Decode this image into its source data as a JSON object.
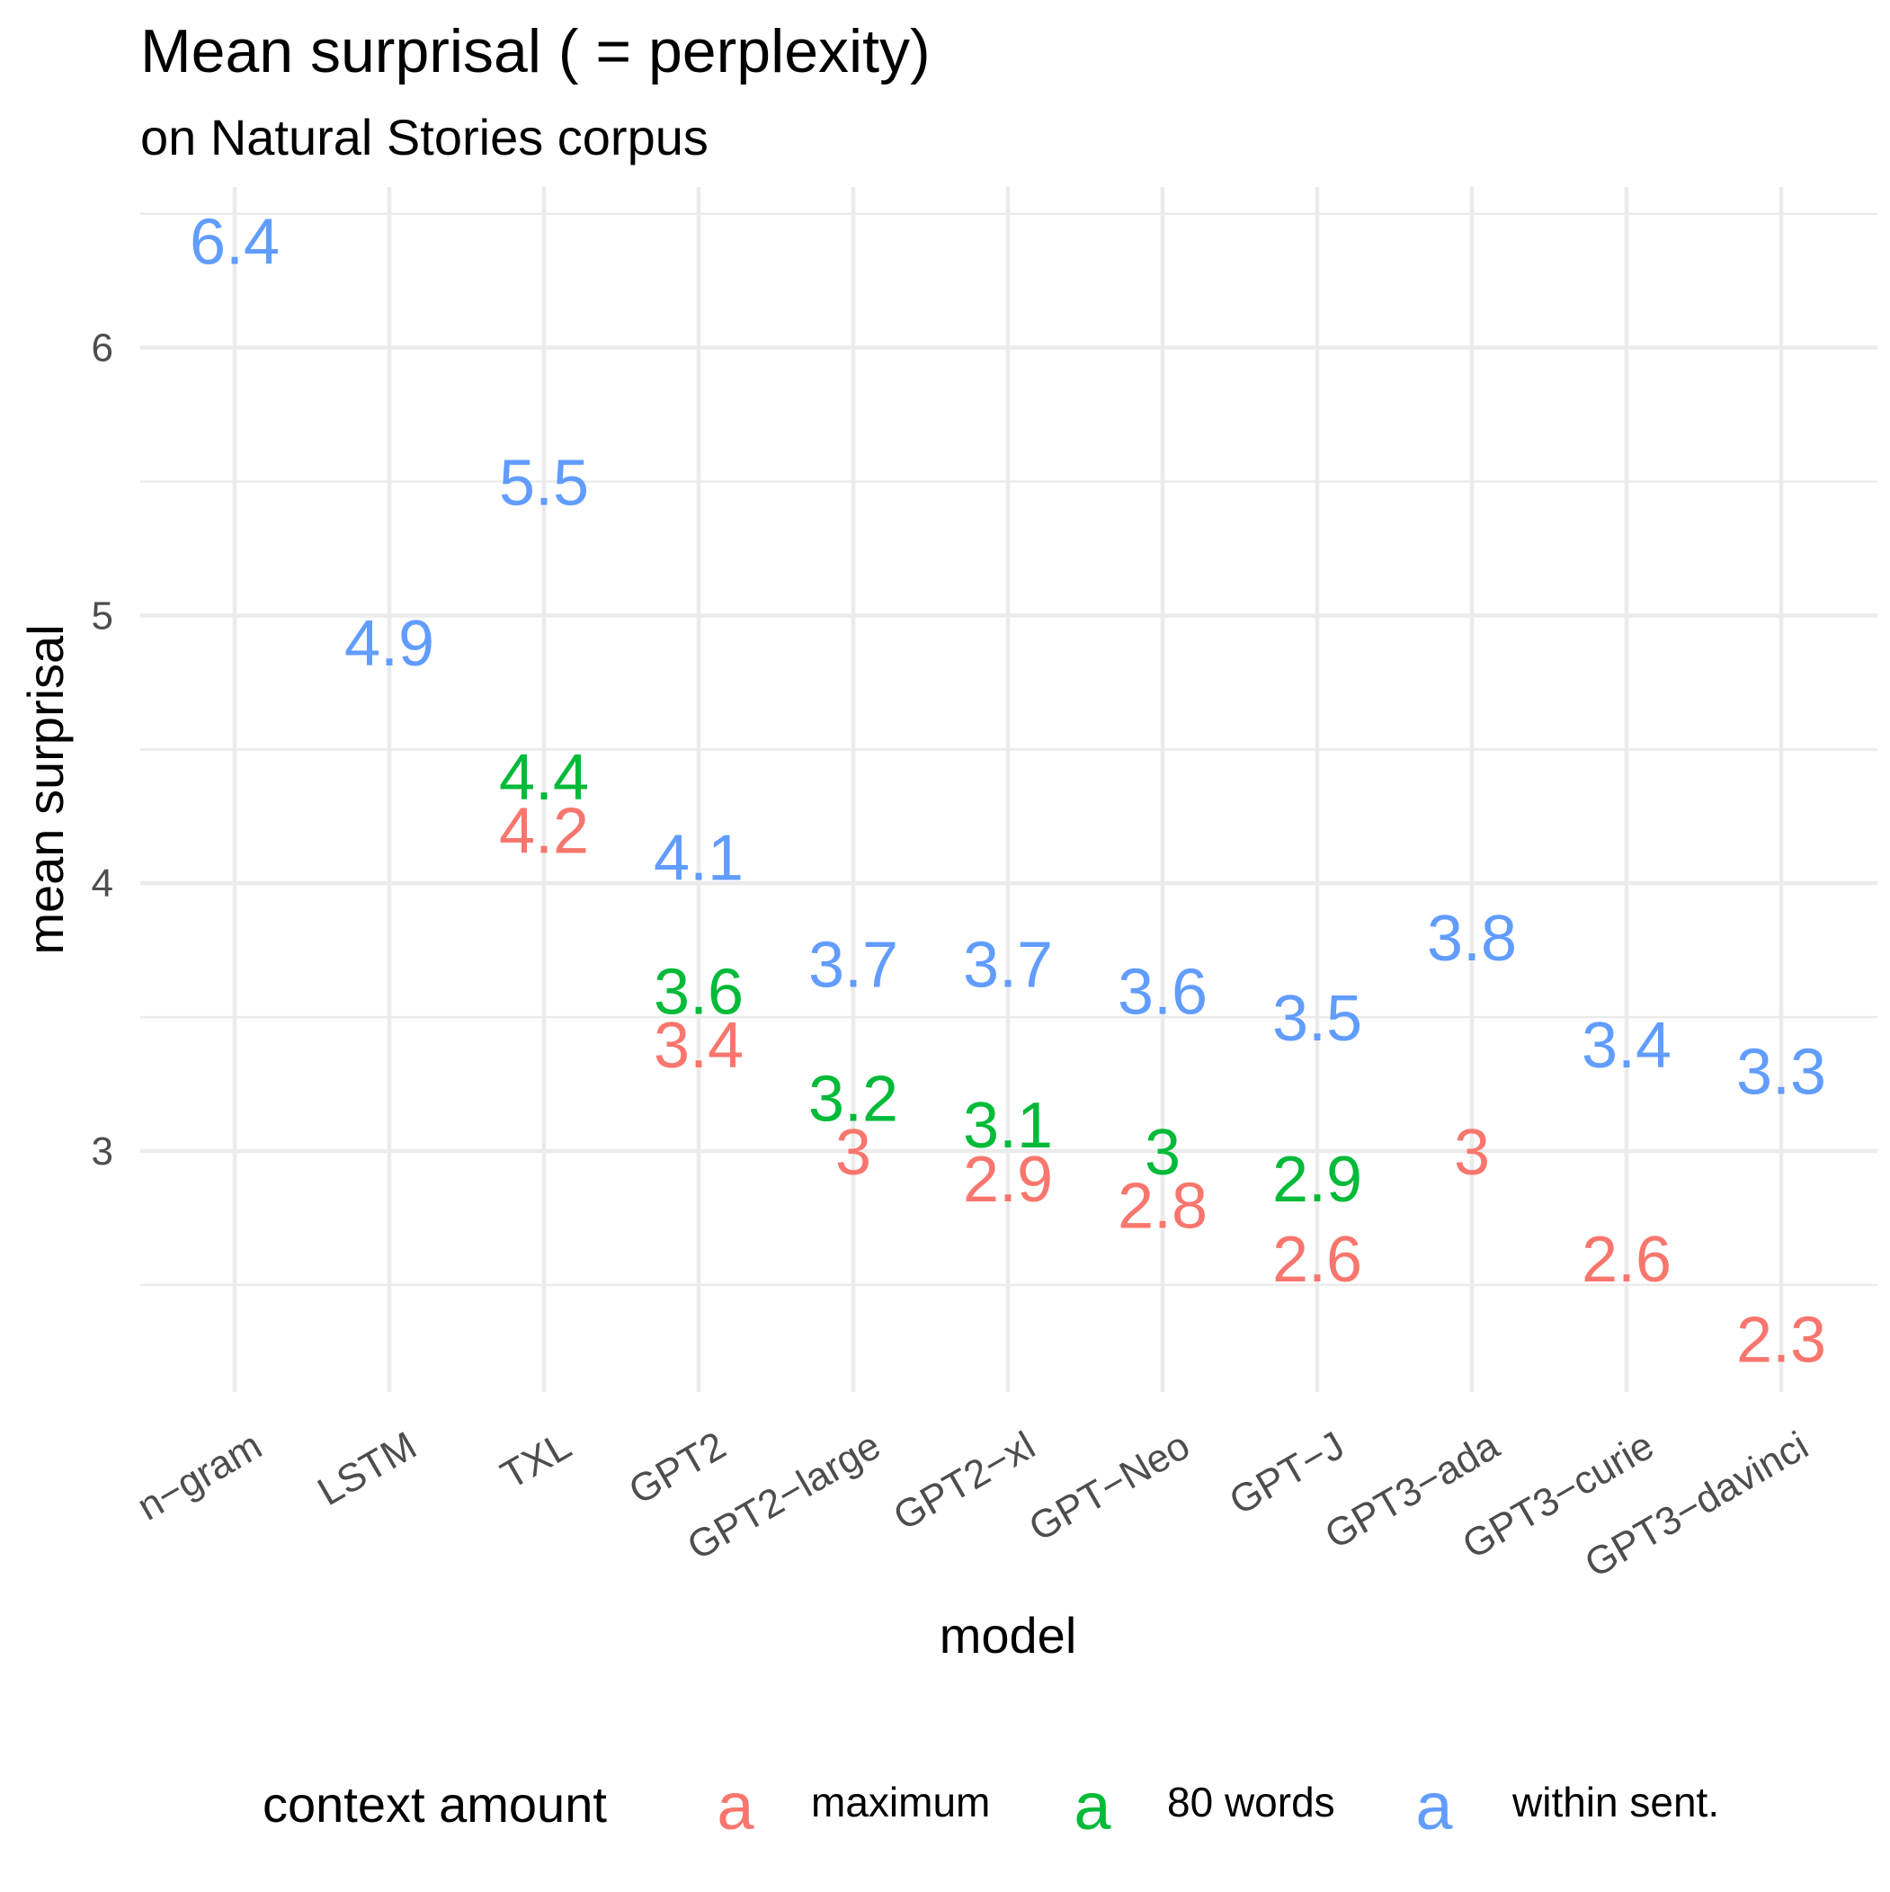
{
  "chart_data": {
    "type": "scatter",
    "title": "Mean surprisal ( = perplexity)",
    "subtitle": "on Natural Stories corpus",
    "xlabel": "model",
    "ylabel": "mean surprisal",
    "ylim": [
      2.1,
      6.6
    ],
    "yticks": [
      3,
      4,
      5,
      6
    ],
    "grid": true,
    "categories": [
      "n−gram",
      "LSTM",
      "TXL",
      "GPT2",
      "GPT2−large",
      "GPT2−xl",
      "GPT−Neo",
      "GPT−J",
      "GPT3−ada",
      "GPT3−curie",
      "GPT3−davinci"
    ],
    "series": [
      {
        "name": "maximum",
        "color": "#F8766D",
        "values": [
          null,
          null,
          4.2,
          3.4,
          3.0,
          2.9,
          2.8,
          2.6,
          3.0,
          2.6,
          2.3
        ]
      },
      {
        "name": "80 words",
        "color": "#00BA38",
        "values": [
          null,
          null,
          4.4,
          3.6,
          3.2,
          3.1,
          3.0,
          2.9,
          null,
          null,
          null
        ]
      },
      {
        "name": "within sent.",
        "color": "#619CFF",
        "values": [
          6.4,
          4.9,
          5.5,
          4.1,
          3.7,
          3.7,
          3.6,
          3.5,
          3.8,
          3.4,
          3.3
        ]
      }
    ],
    "labels": {
      "maximum": [
        null,
        null,
        "4.2",
        "3.4",
        "3",
        "2.9",
        "2.8",
        "2.6",
        "3",
        "2.6",
        "2.3"
      ],
      "80 words": [
        null,
        null,
        "4.4",
        "3.6",
        "3.2",
        "3.1",
        "3",
        "2.9",
        null,
        null,
        null
      ],
      "within sent.": [
        "6.4",
        "4.9",
        "5.5",
        "4.1",
        "3.7",
        "3.7",
        "3.6",
        "3.5",
        "3.8",
        "3.4",
        "3.3"
      ]
    },
    "legend": {
      "title": "context amount",
      "position": "bottom",
      "key_glyph": "a"
    }
  }
}
